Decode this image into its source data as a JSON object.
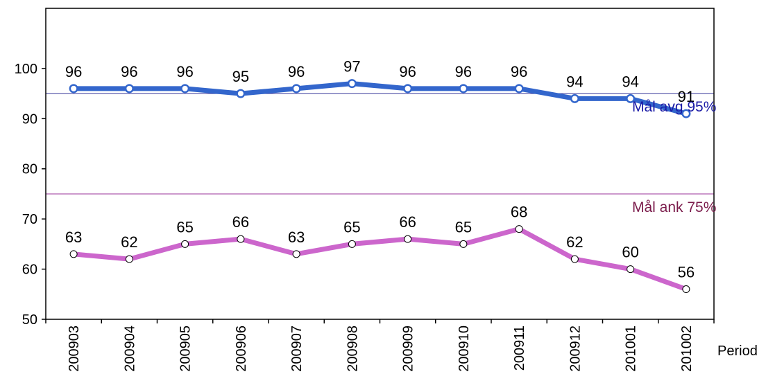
{
  "chart_data": {
    "type": "line",
    "categories": [
      "200903",
      "200904",
      "200905",
      "200906",
      "200907",
      "200908",
      "200909",
      "200910",
      "200911",
      "200912",
      "201001",
      "201002"
    ],
    "xlabel": "Period",
    "ylabel": "",
    "title": "",
    "ylim": [
      50,
      112
    ],
    "yticks": [
      50,
      60,
      70,
      80,
      90,
      100
    ],
    "grid": false,
    "series": [
      {
        "values": [
          96,
          96,
          96,
          95,
          96,
          97,
          96,
          96,
          96,
          94,
          94,
          91
        ],
        "labels": [
          "96",
          "96",
          "96",
          "95",
          "96",
          "97",
          "96",
          "96",
          "96",
          "94",
          "94",
          "91"
        ],
        "color": "#3366cc"
      },
      {
        "values": [
          63,
          62,
          65,
          66,
          63,
          65,
          66,
          65,
          68,
          62,
          60,
          56
        ],
        "labels": [
          "63",
          "62",
          "65",
          "66",
          "63",
          "65",
          "66",
          "65",
          "68",
          "62",
          "60",
          "56"
        ],
        "color": "#cc66cc"
      }
    ],
    "reference_lines": [
      {
        "value": 95,
        "label": "Mål avg 95%",
        "color": "#333399",
        "text_color": "#1a1aa6"
      },
      {
        "value": 75,
        "label": "Mål ank 75%",
        "color": "#993399",
        "text_color": "#7a1a4a"
      }
    ]
  }
}
